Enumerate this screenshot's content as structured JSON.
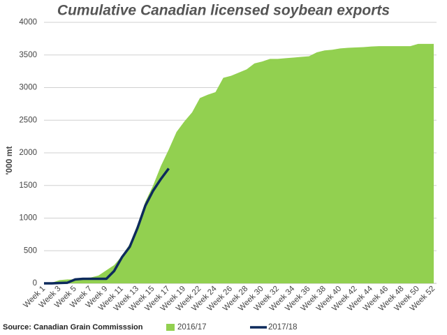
{
  "chart_data": {
    "type": "area",
    "title": "Cumulative Canadian licensed soybean exports",
    "y_label": "'000 mt",
    "source": "Source: Canadian Grain Commisssion",
    "categories": [
      "Week 1",
      null,
      "Week 3",
      null,
      "Week 5",
      null,
      "Week 7",
      null,
      "Week 9",
      null,
      "Week 11",
      null,
      "Week 13",
      null,
      "Week 15",
      null,
      "Week 17",
      null,
      "Week 19",
      null,
      "Week 22",
      null,
      "Week 24",
      null,
      "Week 26",
      null,
      "Week 28",
      null,
      "Week 30",
      null,
      "Week 32",
      null,
      "Week 34",
      null,
      "Week 36",
      null,
      "Week 38",
      null,
      "Week 40",
      null,
      "Week 42",
      null,
      "Week 44",
      null,
      "Week 46",
      null,
      "Week 48",
      null,
      "Week 50",
      null,
      "Week 52"
    ],
    "series": [
      {
        "name": "2016/17",
        "type": "area",
        "color": "#92d050",
        "values": [
          0,
          10,
          50,
          60,
          60,
          80,
          90,
          120,
          200,
          280,
          420,
          600,
          900,
          1250,
          1500,
          1800,
          2050,
          2320,
          2480,
          2620,
          2840,
          2890,
          2930,
          3150,
          3180,
          3230,
          3280,
          3370,
          3400,
          3440,
          3440,
          3450,
          3460,
          3470,
          3480,
          3540,
          3570,
          3580,
          3600,
          3610,
          3615,
          3620,
          3630,
          3635,
          3635,
          3635,
          3635,
          3635,
          3670,
          3670,
          3670
        ]
      },
      {
        "name": "2017/18",
        "type": "line",
        "color": "#0d2a5c",
        "values": [
          0,
          0,
          5,
          10,
          60,
          70,
          70,
          70,
          70,
          190,
          400,
          560,
          850,
          1190,
          1420,
          1600,
          1760,
          null,
          null,
          null,
          null,
          null,
          null,
          null,
          null,
          null,
          null,
          null,
          null,
          null,
          null,
          null,
          null,
          null,
          null,
          null,
          null,
          null,
          null,
          null,
          null,
          null,
          null,
          null,
          null,
          null,
          null,
          null,
          null,
          null,
          null
        ]
      }
    ],
    "ylim": [
      0,
      4000
    ],
    "yticks": [
      0,
      500,
      1000,
      1500,
      2000,
      2500,
      3000,
      3500,
      4000
    ],
    "grid": true,
    "legend": "bottom"
  }
}
